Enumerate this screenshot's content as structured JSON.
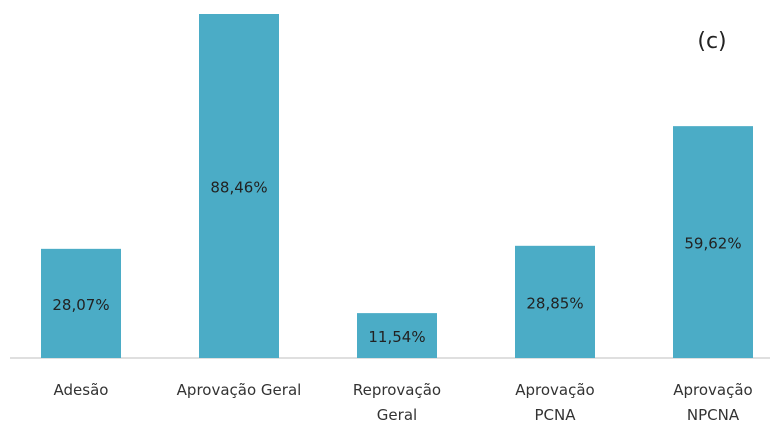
{
  "chart_data": {
    "type": "bar",
    "title": "(c)",
    "categories": [
      "Adesão",
      "Aprovação Geral",
      "Reprovação\nGeral",
      "Aprovação\nPCNA",
      "Aprovação\nNPCNA"
    ],
    "values": [
      28.07,
      88.46,
      11.54,
      28.85,
      59.62
    ],
    "value_labels": [
      "28,07%",
      "88,46%",
      "11,54%",
      "28,85%",
      "59,62%"
    ],
    "color": "#4bacc6"
  }
}
